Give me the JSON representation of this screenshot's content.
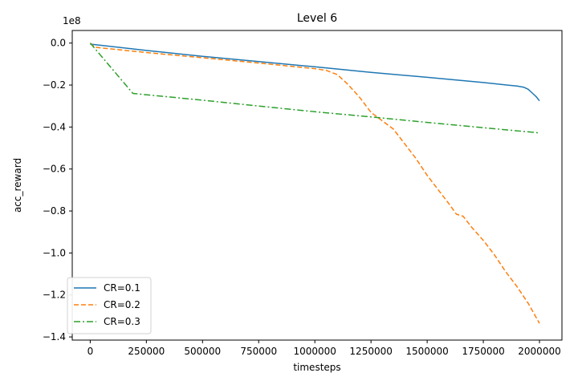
{
  "chart_data": {
    "type": "line",
    "title": "Level 6",
    "xlabel": "timesteps",
    "ylabel": "acc_reward",
    "y_offset_label": "1e8",
    "xlim": [
      -80000,
      2100000
    ],
    "ylim": [
      -1.415,
      0.06
    ],
    "x_ticks": [
      0,
      250000,
      500000,
      750000,
      1000000,
      1250000,
      1500000,
      1750000,
      2000000
    ],
    "x_tick_labels": [
      "0",
      "250000",
      "500000",
      "750000",
      "1000000",
      "1250000",
      "1500000",
      "1750000",
      "2000000"
    ],
    "y_ticks": [
      0.0,
      -0.2,
      -0.4,
      -0.6,
      -0.8,
      -1.0,
      -1.2,
      -1.4
    ],
    "y_tick_labels": [
      "0.0",
      "−0.2",
      "−0.4",
      "−0.6",
      "−0.8",
      "−1.0",
      "−1.2",
      "−1.4"
    ],
    "grid": false,
    "legend_position": "lower-left",
    "series": [
      {
        "name": "CR=0.1",
        "color": "#1f77b4",
        "style": "solid",
        "x": [
          0,
          250000,
          500000,
          750000,
          1000000,
          1250000,
          1500000,
          1750000,
          1900000,
          1930000,
          1950000,
          1970000,
          1985000,
          2000000
        ],
        "y": [
          -0.005,
          -0.035,
          -0.063,
          -0.088,
          -0.113,
          -0.14,
          -0.163,
          -0.188,
          -0.205,
          -0.21,
          -0.22,
          -0.24,
          -0.255,
          -0.275
        ]
      },
      {
        "name": "CR=0.2",
        "color": "#ff7f0e",
        "style": "dashed",
        "x": [
          0,
          20000,
          250000,
          500000,
          750000,
          1000000,
          1050000,
          1100000,
          1150000,
          1200000,
          1250000,
          1300000,
          1350000,
          1400000,
          1450000,
          1500000,
          1550000,
          1600000,
          1630000,
          1660000,
          1700000,
          1750000,
          1800000,
          1850000,
          1900000,
          1950000,
          2000000
        ],
        "y": [
          0.0,
          -0.02,
          -0.045,
          -0.07,
          -0.095,
          -0.122,
          -0.13,
          -0.15,
          -0.2,
          -0.26,
          -0.33,
          -0.37,
          -0.41,
          -0.48,
          -0.55,
          -0.63,
          -0.7,
          -0.77,
          -0.815,
          -0.825,
          -0.88,
          -0.94,
          -1.01,
          -1.09,
          -1.16,
          -1.24,
          -1.335
        ]
      },
      {
        "name": "CR=0.3",
        "color": "#2ca02c",
        "style": "dashdot",
        "x": [
          0,
          190000,
          500000,
          750000,
          1000000,
          1250000,
          1500000,
          1750000,
          2000000
        ],
        "y": [
          0.0,
          -0.24,
          -0.272,
          -0.3,
          -0.327,
          -0.352,
          -0.378,
          -0.403,
          -0.428
        ]
      }
    ]
  }
}
